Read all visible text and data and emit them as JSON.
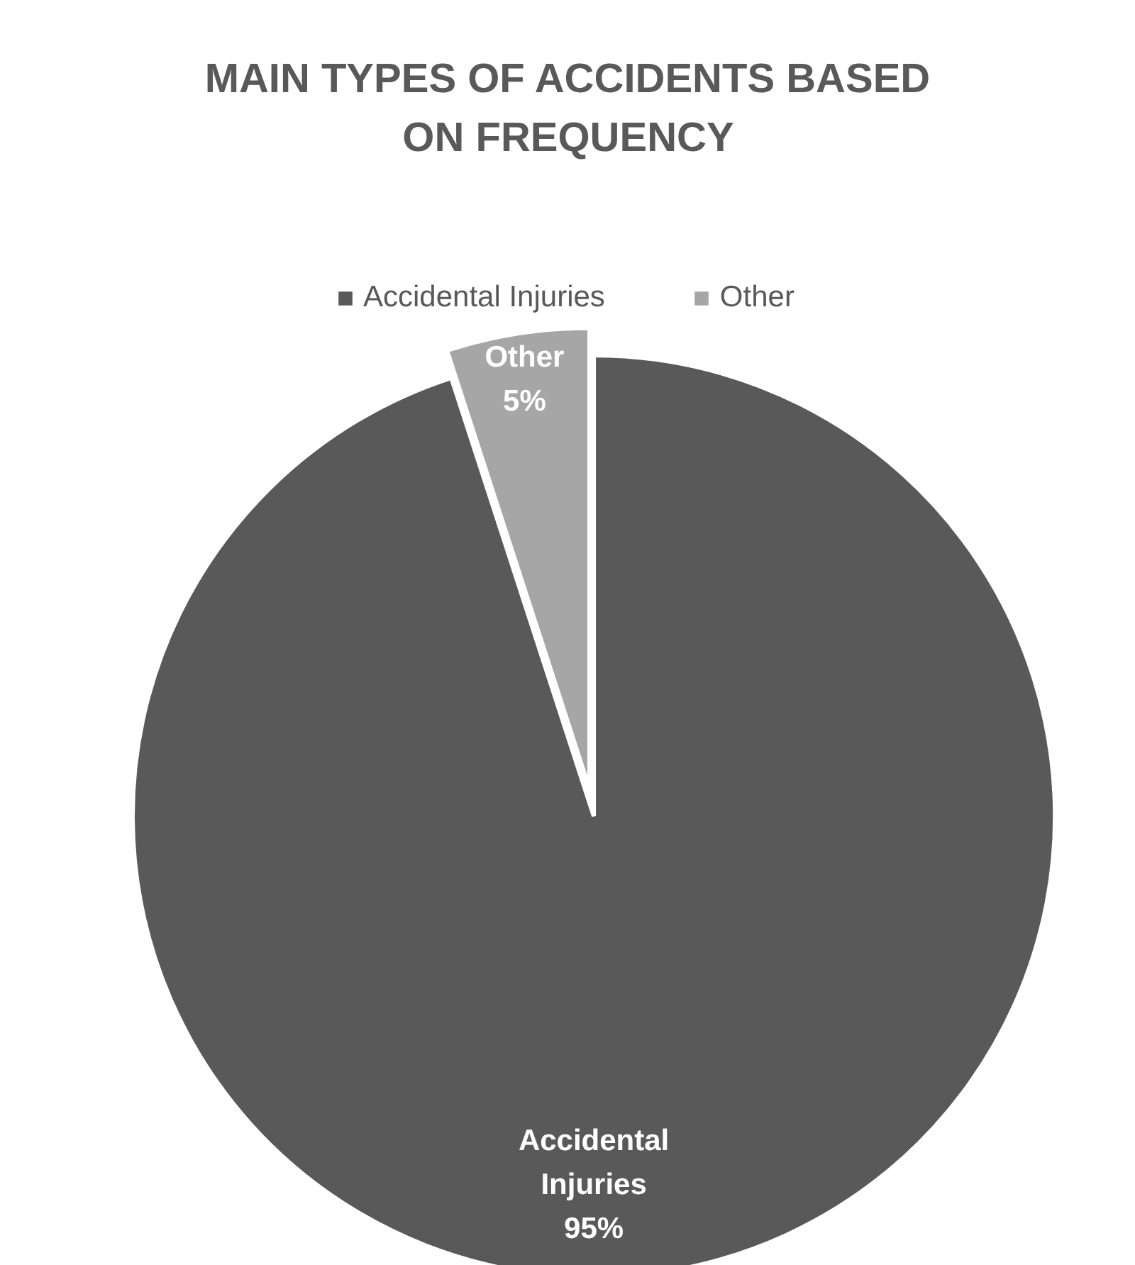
{
  "chart_data": {
    "type": "pie",
    "title": "MAIN TYPES OF ACCIDENTS BASED ON FREQUENCY",
    "categories": [
      "Accidental Injuries",
      "Other"
    ],
    "values": [
      95,
      5
    ],
    "colors": [
      "#595959",
      "#a6a6a6"
    ],
    "value_labels": [
      "95%",
      "5%"
    ],
    "legend": "top"
  }
}
